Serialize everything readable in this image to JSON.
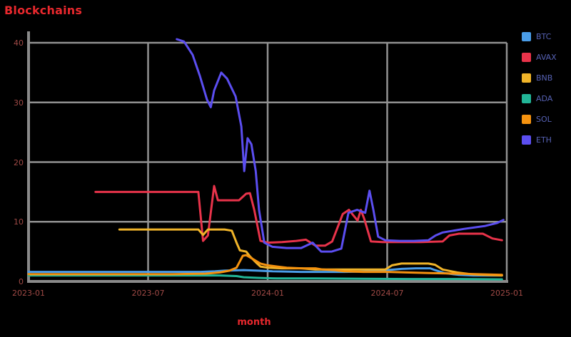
{
  "page": {
    "background": "#000000"
  },
  "chart_data": {
    "type": "line",
    "title": "Blockchains",
    "xlabel": "month",
    "ylabel": "",
    "x_unit": "axis-percent",
    "xlim": [
      0,
      100
    ],
    "ylim": [
      0,
      42
    ],
    "grid": true,
    "legend_position": "right",
    "colors": {
      "background": "#000000",
      "grid": "#919191",
      "axis": "#8a8a8a",
      "title_text": "#e8282d",
      "tick_text": "#a04a46",
      "legend_text": "#5661b3"
    },
    "y_ticks": [
      {
        "value": 0,
        "label": "0"
      },
      {
        "value": 10,
        "label": "10"
      },
      {
        "value": 20,
        "label": "20"
      },
      {
        "value": 30,
        "label": "30"
      },
      {
        "value": 40,
        "label": "40"
      }
    ],
    "x_ticks": [
      {
        "pos": 0,
        "label": "2023-01"
      },
      {
        "pos": 25,
        "label": "2023-07"
      },
      {
        "pos": 50,
        "label": "2024-01"
      },
      {
        "pos": 75,
        "label": "2024-07"
      },
      {
        "pos": 100,
        "label": "2025-01"
      }
    ],
    "series": [
      {
        "name": "BTC",
        "color": "#4a9de8",
        "points": [
          [
            0,
            1.6
          ],
          [
            8,
            1.6
          ],
          [
            16,
            1.6
          ],
          [
            24,
            1.6
          ],
          [
            32,
            1.6
          ],
          [
            36,
            1.6
          ],
          [
            39,
            1.7
          ],
          [
            41,
            1.8
          ],
          [
            45,
            1.9
          ],
          [
            48,
            1.8
          ],
          [
            51,
            1.7
          ],
          [
            57,
            1.6
          ],
          [
            62,
            1.6
          ],
          [
            66,
            1.6
          ],
          [
            72,
            1.7
          ],
          [
            75,
            1.9
          ],
          [
            78,
            2.1
          ],
          [
            81,
            2.2
          ],
          [
            84,
            2.2
          ],
          [
            85,
            1.9
          ],
          [
            87,
            1.4
          ],
          [
            90,
            1.1
          ],
          [
            93,
            1.0
          ],
          [
            99,
            1.0
          ]
        ]
      },
      {
        "name": "AVAX",
        "color": "#e8334a",
        "points": [
          [
            14,
            15
          ],
          [
            22,
            15
          ],
          [
            30,
            15
          ],
          [
            35.5,
            15
          ],
          [
            36.5,
            6.8
          ],
          [
            37.5,
            7.7
          ],
          [
            38.8,
            16
          ],
          [
            39.6,
            13.6
          ],
          [
            42,
            13.6
          ],
          [
            44,
            13.6
          ],
          [
            45.5,
            14.7
          ],
          [
            46.3,
            14.8
          ],
          [
            47.2,
            12
          ],
          [
            48.5,
            6.8
          ],
          [
            50,
            6.5
          ],
          [
            53,
            6.6
          ],
          [
            56,
            6.8
          ],
          [
            58,
            7.0
          ],
          [
            60,
            6.0
          ],
          [
            62,
            6.0
          ],
          [
            63.5,
            6.7
          ],
          [
            65.7,
            11.3
          ],
          [
            67,
            12
          ],
          [
            68,
            11
          ],
          [
            68.8,
            10.2
          ],
          [
            69.5,
            12
          ],
          [
            70.2,
            10.5
          ],
          [
            71.6,
            6.7
          ],
          [
            74,
            6.6
          ],
          [
            78,
            6.6
          ],
          [
            82,
            6.6
          ],
          [
            86.6,
            6.7
          ],
          [
            88,
            7.7
          ],
          [
            90,
            8.0
          ],
          [
            93,
            8.0
          ],
          [
            95,
            8.0
          ],
          [
            97,
            7.2
          ],
          [
            99,
            6.9
          ]
        ]
      },
      {
        "name": "BNB",
        "color": "#f0b429",
        "points": [
          [
            19,
            8.7
          ],
          [
            25,
            8.7
          ],
          [
            31,
            8.7
          ],
          [
            35.5,
            8.7
          ],
          [
            36.5,
            7.8
          ],
          [
            37.5,
            8.7
          ],
          [
            41,
            8.7
          ],
          [
            42.5,
            8.5
          ],
          [
            43.5,
            6.5
          ],
          [
            44.2,
            5.2
          ],
          [
            45.5,
            5.0
          ],
          [
            46.3,
            4.2
          ],
          [
            47.8,
            3.0
          ],
          [
            48.5,
            2.5
          ],
          [
            50,
            2.3
          ],
          [
            53,
            2.2
          ],
          [
            57,
            2.2
          ],
          [
            60,
            2.0
          ],
          [
            64,
            2.0
          ],
          [
            68,
            2.0
          ],
          [
            71,
            2.0
          ],
          [
            74.6,
            2.0
          ],
          [
            76,
            2.7
          ],
          [
            78,
            3.0
          ],
          [
            80,
            3.0
          ],
          [
            83.6,
            3.0
          ],
          [
            85,
            2.8
          ],
          [
            86.6,
            2.0
          ],
          [
            89.6,
            1.5
          ],
          [
            92.5,
            1.2
          ],
          [
            95,
            1.1
          ],
          [
            99,
            1.0
          ]
        ]
      },
      {
        "name": "ADA",
        "color": "#22b597",
        "points": [
          [
            0,
            1.0
          ],
          [
            10,
            1.0
          ],
          [
            20,
            1.0
          ],
          [
            30,
            1.0
          ],
          [
            40,
            1.0
          ],
          [
            43.5,
            0.9
          ],
          [
            45,
            0.7
          ],
          [
            48,
            0.6
          ],
          [
            52,
            0.5
          ],
          [
            60,
            0.5
          ],
          [
            70,
            0.45
          ],
          [
            80,
            0.4
          ],
          [
            90,
            0.4
          ],
          [
            99,
            0.35
          ]
        ]
      },
      {
        "name": "SOL",
        "color": "#f5920f",
        "points": [
          [
            0,
            1.2
          ],
          [
            10,
            1.2
          ],
          [
            20,
            1.2
          ],
          [
            30,
            1.2
          ],
          [
            37,
            1.3
          ],
          [
            40,
            1.5
          ],
          [
            42,
            1.8
          ],
          [
            43.5,
            2.3
          ],
          [
            44.8,
            4.3
          ],
          [
            45.5,
            4.4
          ],
          [
            46.6,
            3.9
          ],
          [
            48.5,
            3.0
          ],
          [
            50,
            2.7
          ],
          [
            52,
            2.5
          ],
          [
            54,
            2.3
          ],
          [
            57,
            2.2
          ],
          [
            60,
            2.2
          ],
          [
            61.5,
            2.0
          ],
          [
            64,
            1.9
          ],
          [
            66,
            1.7
          ],
          [
            70,
            1.6
          ],
          [
            75,
            1.6
          ],
          [
            79,
            1.5
          ],
          [
            84,
            1.4
          ],
          [
            90,
            1.3
          ],
          [
            94,
            1.2
          ],
          [
            99,
            1.1
          ]
        ]
      },
      {
        "name": "ETH",
        "color": "#5b4ef0",
        "points": [
          [
            31,
            40.6
          ],
          [
            32.5,
            40.2
          ],
          [
            34.3,
            38
          ],
          [
            35.8,
            34.5
          ],
          [
            37.3,
            30.5
          ],
          [
            38.1,
            29.2
          ],
          [
            38.8,
            32
          ],
          [
            40.3,
            35
          ],
          [
            41.5,
            34
          ],
          [
            43.3,
            31
          ],
          [
            44.5,
            26
          ],
          [
            45.1,
            18.5
          ],
          [
            45.8,
            24
          ],
          [
            46.6,
            23
          ],
          [
            47.5,
            18.5
          ],
          [
            48.2,
            12
          ],
          [
            49.3,
            6.5
          ],
          [
            51,
            5.8
          ],
          [
            54,
            5.6
          ],
          [
            57,
            5.6
          ],
          [
            59.4,
            6.5
          ],
          [
            61.2,
            5.0
          ],
          [
            63.4,
            5.0
          ],
          [
            65.4,
            5.5
          ],
          [
            66.9,
            11.5
          ],
          [
            68.7,
            12
          ],
          [
            70.4,
            11.5
          ],
          [
            71.3,
            15.2
          ],
          [
            72.1,
            12
          ],
          [
            73.1,
            7.5
          ],
          [
            74.6,
            6.9
          ],
          [
            77.6,
            6.8
          ],
          [
            80.6,
            6.8
          ],
          [
            83.6,
            6.9
          ],
          [
            85.1,
            7.7
          ],
          [
            86.6,
            8.2
          ],
          [
            91,
            8.8
          ],
          [
            95.5,
            9.3
          ],
          [
            98,
            9.8
          ],
          [
            99.3,
            10.3
          ]
        ]
      }
    ]
  }
}
